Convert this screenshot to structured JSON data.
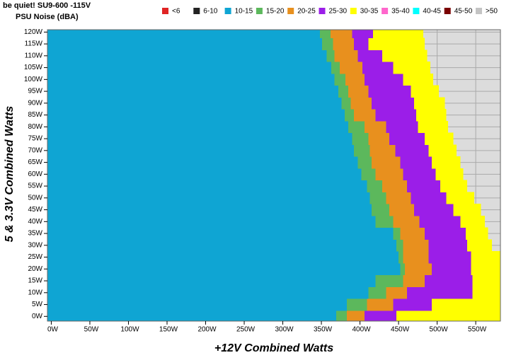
{
  "chart_data": {
    "type": "region-map",
    "title": "be quiet! SU9-600 -115V",
    "subtitle": "PSU Noise (dBA)",
    "x_label": "+12V Combined Watts",
    "y_label": "5 & 3.3V Combined Watts",
    "xlim": [
      -5,
      582
    ],
    "ylim": [
      -2,
      121
    ],
    "grid": true,
    "legend_position": "top",
    "y": [
      0,
      5,
      10,
      15,
      20,
      25,
      30,
      35,
      40,
      45,
      50,
      55,
      60,
      65,
      70,
      75,
      80,
      85,
      90,
      95,
      100,
      105,
      110,
      115,
      120
    ],
    "xticks": [
      {
        "value": 0,
        "label": "0W"
      },
      {
        "value": 50,
        "label": "50W"
      },
      {
        "value": 100,
        "label": "100W"
      },
      {
        "value": 150,
        "label": "150W"
      },
      {
        "value": 200,
        "label": "200W"
      },
      {
        "value": 250,
        "label": "250W"
      },
      {
        "value": 300,
        "label": "300W"
      },
      {
        "value": 350,
        "label": "350W"
      },
      {
        "value": 400,
        "label": "400W"
      },
      {
        "value": 450,
        "label": "450W"
      },
      {
        "value": 500,
        "label": "500W"
      },
      {
        "value": 550,
        "label": "550W"
      }
    ],
    "yticks": [
      {
        "value": 0,
        "label": "0W"
      },
      {
        "value": 5,
        "label": "5W"
      },
      {
        "value": 10,
        "label": "10W"
      },
      {
        "value": 15,
        "label": "15W"
      },
      {
        "value": 20,
        "label": "20W"
      },
      {
        "value": 25,
        "label": "25W"
      },
      {
        "value": 30,
        "label": "30W"
      },
      {
        "value": 35,
        "label": "35W"
      },
      {
        "value": 40,
        "label": "40W"
      },
      {
        "value": 45,
        "label": "45W"
      },
      {
        "value": 50,
        "label": "50W"
      },
      {
        "value": 55,
        "label": "55W"
      },
      {
        "value": 60,
        "label": "60W"
      },
      {
        "value": 65,
        "label": "65W"
      },
      {
        "value": 70,
        "label": "70W"
      },
      {
        "value": 75,
        "label": "75W"
      },
      {
        "value": 80,
        "label": "80W"
      },
      {
        "value": 85,
        "label": "85W"
      },
      {
        "value": 90,
        "label": "90W"
      },
      {
        "value": 95,
        "label": "95W"
      },
      {
        "value": 100,
        "label": "100W"
      },
      {
        "value": 105,
        "label": "105W"
      },
      {
        "value": 110,
        "label": "110W"
      },
      {
        "value": 115,
        "label": "115W"
      },
      {
        "value": 120,
        "label": "120W"
      }
    ],
    "series": [
      {
        "name": "<6",
        "color": "#e02424"
      },
      {
        "name": "6-10",
        "color": "#222222"
      },
      {
        "name": "10-15",
        "color": "#0fa5d3",
        "values": [
          369,
          383,
          411,
          420,
          452,
          450,
          447,
          443,
          420,
          415,
          413,
          409,
          402,
          397,
          392,
          390,
          385,
          380,
          376,
          372,
          367,
          363,
          357,
          351,
          348
        ]
      },
      {
        "name": "15-20",
        "color": "#5cb85c",
        "values": [
          383,
          409,
          434,
          456,
          458,
          456,
          456,
          452,
          443,
          438,
          434,
          429,
          420,
          415,
          413,
          411,
          406,
          392,
          388,
          385,
          381,
          374,
          367,
          365,
          362
        ]
      },
      {
        "name": "20-25",
        "color": "#e8901e",
        "values": [
          406,
          443,
          461,
          484,
          493,
          489,
          489,
          484,
          477,
          470,
          466,
          461,
          456,
          452,
          446,
          438,
          434,
          420,
          415,
          411,
          406,
          403,
          397,
          392,
          390
        ]
      },
      {
        "name": "25-30",
        "color": "#9b1ee8",
        "values": [
          447,
          493,
          546,
          546,
          544,
          544,
          539,
          537,
          530,
          521,
          512,
          504,
          498,
          493,
          489,
          484,
          475,
          473,
          470,
          466,
          456,
          443,
          429,
          411,
          417
        ]
      },
      {
        "name": "30-35",
        "color": "#ffff00",
        "values": [
          582,
          582,
          582,
          582,
          582,
          582,
          571,
          566,
          562,
          557,
          548,
          539,
          534,
          530,
          525,
          521,
          514,
          512,
          510,
          502,
          495,
          491,
          487,
          484,
          482
        ]
      },
      {
        "name": "35-40",
        "color": "#ff66cc"
      },
      {
        "name": "40-45",
        "color": "#00ffff"
      },
      {
        "name": "45-50",
        "color": "#7a0000"
      },
      {
        "name": ">50",
        "color": "#c4c4c4"
      }
    ]
  }
}
